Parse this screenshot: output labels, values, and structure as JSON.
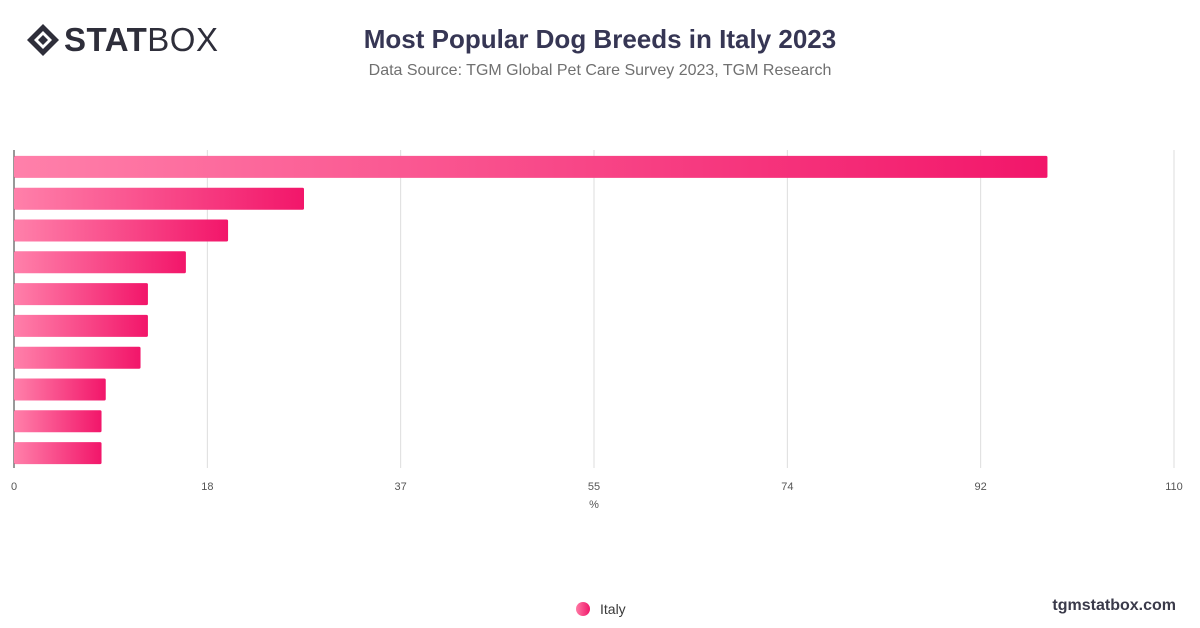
{
  "brand": {
    "logo_bold": "STAT",
    "logo_light": "BOX",
    "site": "tgmstatbox.com"
  },
  "header": {
    "title": "Most Popular Dog Breeds in Italy 2023",
    "subtitle": "Data Source: TGM Global Pet Care Survey 2023, TGM Research"
  },
  "legend": {
    "label": "Italy"
  },
  "colors": {
    "bar_start": "#ff80aa",
    "bar_end": "#f2166a",
    "grid": "#dddddd",
    "axis": "#333333"
  },
  "chart_data": {
    "type": "bar",
    "orientation": "horizontal",
    "categories": [
      "",
      "",
      "",
      "",
      "",
      "",
      "",
      "",
      "",
      ""
    ],
    "series": [
      {
        "name": "Italy",
        "values": [
          98,
          27.5,
          20.3,
          16.3,
          12.7,
          12.7,
          12,
          8.7,
          8.3,
          8.3
        ]
      }
    ],
    "xlim": [
      0,
      110
    ],
    "xticks": [
      "0",
      "18",
      "37",
      "55",
      "74",
      "92",
      "110"
    ],
    "xlabel": "%",
    "grid": true,
    "legend_position": "bottom"
  }
}
